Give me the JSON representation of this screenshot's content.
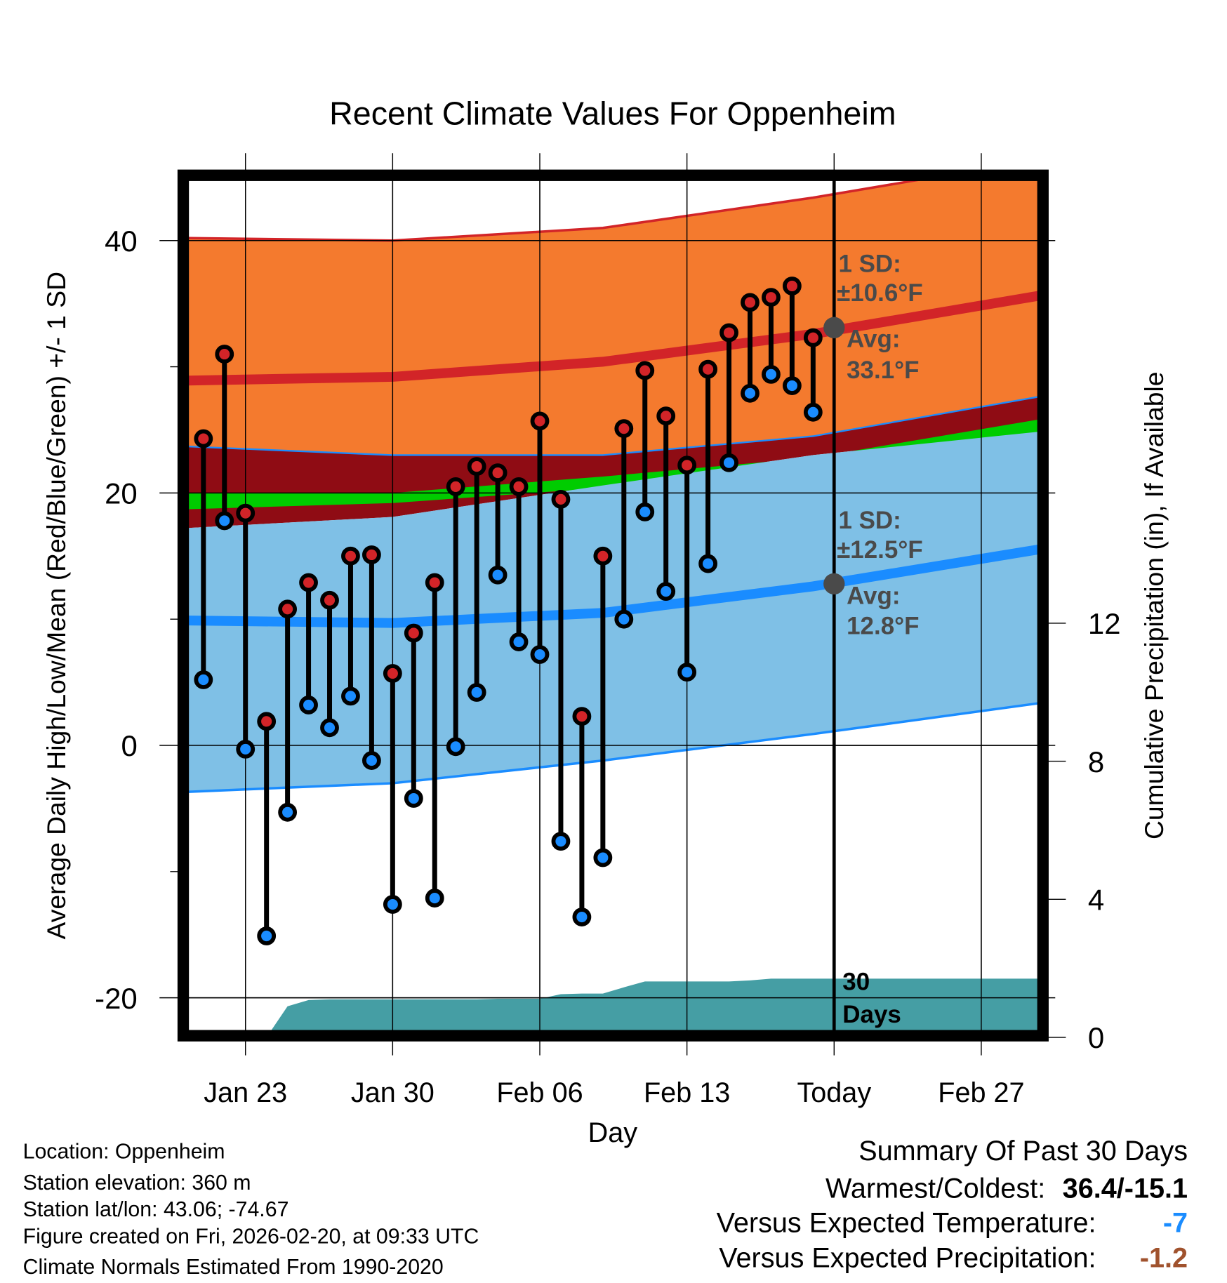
{
  "chart_data": {
    "type": "line",
    "title": "Recent Climate Values For Oppenheim",
    "xlabel": "Day",
    "ylabel": "Average Daily High/Low/Mean (Red/Blue/Green) +/- 1 SD",
    "y2label": "Cumulative Precipitation (in), If Available",
    "ylim": [
      -23,
      45
    ],
    "y2lim": [
      0,
      16
    ],
    "x_ticks": [
      {
        "day": 3,
        "label": "Jan 23"
      },
      {
        "day": 10,
        "label": "Jan 30"
      },
      {
        "day": 17,
        "label": "Feb 06"
      },
      {
        "day": 24,
        "label": "Feb 13"
      },
      {
        "day": 31,
        "label": "Today"
      },
      {
        "day": 38,
        "label": "Feb 27"
      }
    ],
    "y_ticks": [
      {
        "v": 40,
        "label": "40"
      },
      {
        "v": 20,
        "label": "20"
      },
      {
        "v": 0,
        "label": "0"
      },
      {
        "v": -20,
        "label": "-20"
      }
    ],
    "y_minor_ticks": [
      30,
      10,
      -10
    ],
    "y2_ticks": [
      {
        "v": 12,
        "label": "12"
      },
      {
        "v": 8,
        "label": "8"
      },
      {
        "v": 4,
        "label": "4"
      },
      {
        "v": 0,
        "label": "0"
      }
    ],
    "today_day": 31,
    "daily": {
      "dates": [
        "Jan 21",
        "Jan 22",
        "Jan 23",
        "Jan 24",
        "Jan 25",
        "Jan 26",
        "Jan 27",
        "Jan 28",
        "Jan 29",
        "Jan 30",
        "Jan 31",
        "Feb 01",
        "Feb 02",
        "Feb 03",
        "Feb 04",
        "Feb 05",
        "Feb 06",
        "Feb 07",
        "Feb 08",
        "Feb 09",
        "Feb 10",
        "Feb 11",
        "Feb 12",
        "Feb 13",
        "Feb 14",
        "Feb 15",
        "Feb 16",
        "Feb 17",
        "Feb 18",
        "Feb 19"
      ],
      "high": [
        24.3,
        31.0,
        18.4,
        1.9,
        10.8,
        12.9,
        11.5,
        15.0,
        15.1,
        5.7,
        8.9,
        12.9,
        20.5,
        22.1,
        21.6,
        20.5,
        25.7,
        19.5,
        2.3,
        15.0,
        25.1,
        29.7,
        26.1,
        22.2,
        29.8,
        32.7,
        35.1,
        35.5,
        36.4,
        32.3
      ],
      "low": [
        5.2,
        17.8,
        -0.3,
        -15.1,
        -5.3,
        3.2,
        1.4,
        3.9,
        -1.2,
        -12.6,
        -4.2,
        -12.1,
        -0.1,
        4.2,
        13.5,
        8.2,
        7.2,
        -7.6,
        -13.6,
        -8.9,
        10.0,
        18.5,
        12.2,
        5.8,
        14.4,
        22.4,
        27.9,
        29.4,
        28.5,
        26.4
      ],
      "cum_precip": [
        0,
        0,
        0,
        0,
        0.9,
        1.08,
        1.1,
        1.1,
        1.1,
        1.1,
        1.1,
        1.1,
        1.1,
        1.1,
        1.12,
        1.12,
        1.12,
        1.25,
        1.27,
        1.27,
        1.45,
        1.62,
        1.62,
        1.62,
        1.62,
        1.62,
        1.65,
        1.7,
        1.7,
        1.7
      ]
    },
    "normals": {
      "days": [
        0,
        10,
        20,
        30,
        41
      ],
      "high_upper": [
        40.2,
        40.0,
        41.0,
        43.4,
        46.5
      ],
      "high_avg": [
        28.9,
        29.2,
        30.4,
        32.6,
        35.7
      ],
      "high_lower": [
        23.7,
        23.0,
        23.0,
        24.5,
        27.7
      ],
      "mean_upper": [
        20.0,
        20.0,
        21.3,
        22.8,
        25.9
      ],
      "mean_lower": [
        18.7,
        19.2,
        20.4,
        22.0,
        24.9
      ],
      "low_upper": [
        17.2,
        18.1,
        20.6,
        23.0,
        24.9
      ],
      "low_avg": [
        9.9,
        9.7,
        10.5,
        12.6,
        15.6
      ],
      "low_lower": [
        -3.7,
        -3.0,
        -1.2,
        0.9,
        3.4
      ]
    },
    "annotations": {
      "high_sd_line1": "1 SD:",
      "high_sd_line2": "±10.6°F",
      "high_avg_line1": "Avg:",
      "high_avg_line2": "33.1°F",
      "high_avg_value": 33.1,
      "low_sd_line1": "1 SD:",
      "low_sd_line2": "±12.5°F",
      "low_avg_line1": "Avg:",
      "low_avg_line2": "12.8°F",
      "low_avg_value": 12.8,
      "precip_line1": "30",
      "precip_line2": "Days"
    }
  },
  "info": {
    "location": "Location: Oppenheim",
    "elevation": "Station elevation: 360 m",
    "latlon": "Station lat/lon: 43.06; -74.67",
    "created": "Figure created on Fri, 2026-02-20, at 09:33 UTC",
    "normals": "Climate Normals Estimated From 1990-2020"
  },
  "summary": {
    "title": "Summary Of Past 30 Days",
    "warm_cold_label": "Warmest/Coldest:",
    "warm_cold_value": "36.4/-15.1",
    "temp_label": "Versus Expected Temperature:",
    "temp_value": "-7",
    "precip_label": "Versus Expected Precipitation:",
    "precip_value": "-1.2"
  },
  "colors": {
    "orange": "#f47a2e",
    "dark_red": "#8f0c14",
    "green": "#00cc00",
    "light_blue": "#7fc0e6",
    "red_line": "#d22428",
    "blue_line": "#1a8cff",
    "precip": "#459ea4",
    "high_dot": "#d22428",
    "low_dot": "#1a8cff",
    "annot": "#4a4a4a",
    "precip_value": "#a0522d"
  }
}
